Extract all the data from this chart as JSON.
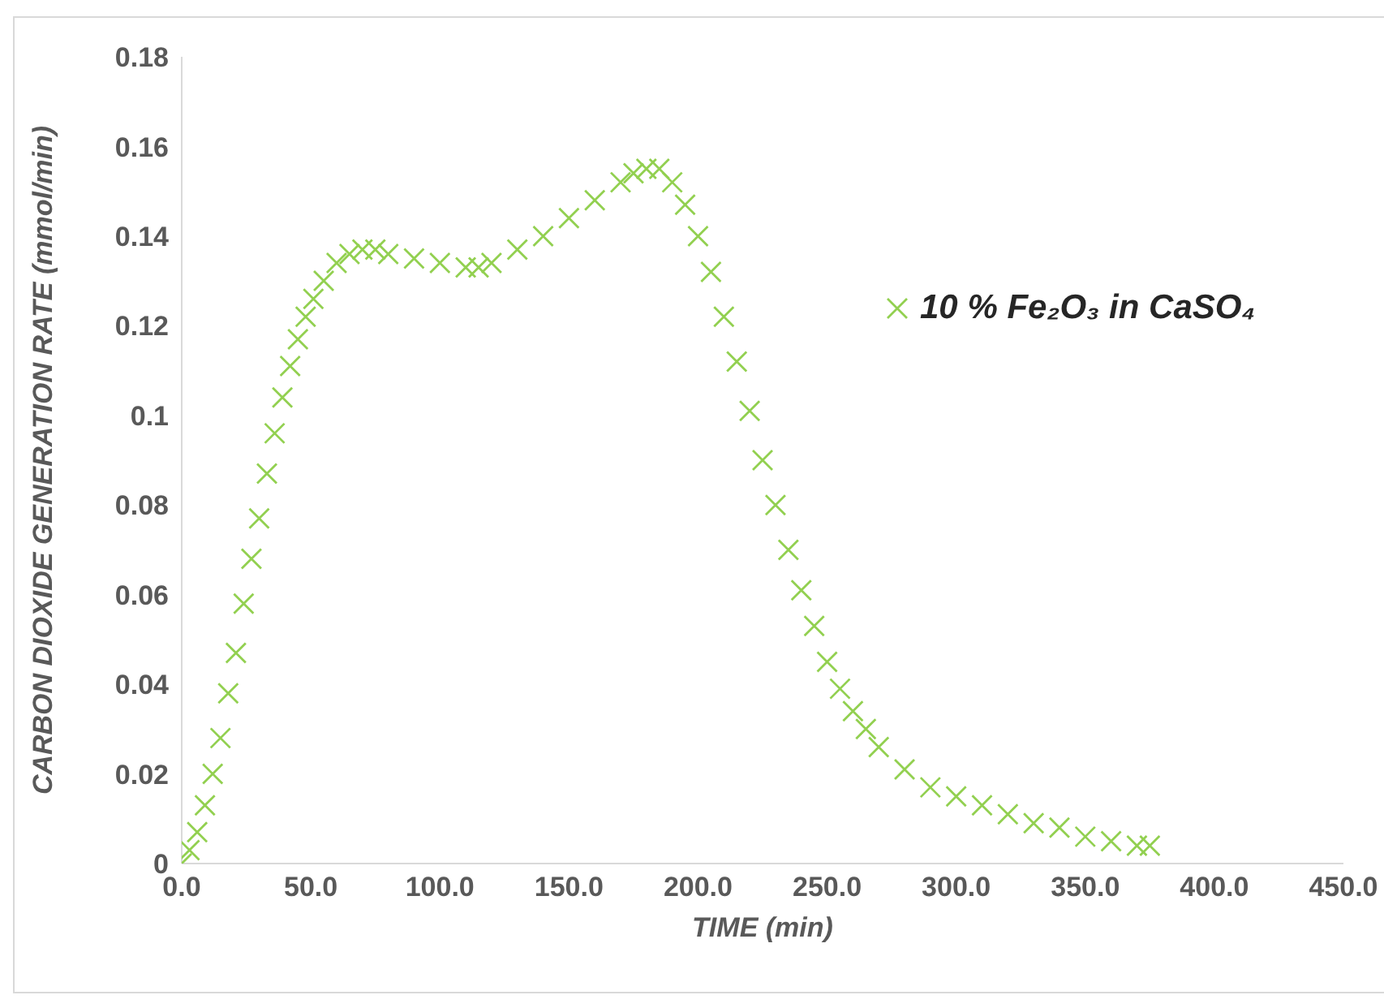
{
  "chart_data": {
    "type": "scatter",
    "xlabel": "TIME (min)",
    "ylabel": "CARBON DIOXIDE GENERATION RATE (mmol/min)",
    "xlim": [
      0,
      450
    ],
    "xticks": [
      {
        "value": 0,
        "label": "0.0"
      },
      {
        "value": 50,
        "label": "50.0"
      },
      {
        "value": 100,
        "label": "100.0"
      },
      {
        "value": 150,
        "label": "150.0"
      },
      {
        "value": 200,
        "label": "200.0"
      },
      {
        "value": 250,
        "label": "250.0"
      },
      {
        "value": 300,
        "label": "300.0"
      },
      {
        "value": 350,
        "label": "350.0"
      },
      {
        "value": 400,
        "label": "400.0"
      },
      {
        "value": 450,
        "label": "450.0"
      }
    ],
    "ylim": [
      0,
      0.18
    ],
    "yticks": [
      0,
      0.02,
      0.04,
      0.06,
      0.08,
      0.1,
      0.12,
      0.14,
      0.16,
      0.18
    ],
    "grid": false,
    "legend": "right",
    "marker": "cross",
    "series": [
      {
        "name": "10 % Fe₂O₃ in CaSO₄",
        "color": "#92d050",
        "x": [
          0,
          3,
          6,
          9,
          12,
          15,
          18,
          21,
          24,
          27,
          30,
          33,
          36,
          39,
          42,
          45,
          48,
          51,
          55,
          60,
          65,
          70,
          75,
          80,
          90,
          100,
          110,
          115,
          120,
          130,
          140,
          150,
          160,
          170,
          175,
          180,
          185,
          190,
          195,
          200,
          205,
          210,
          215,
          220,
          225,
          230,
          235,
          240,
          245,
          250,
          255,
          260,
          265,
          270,
          280,
          290,
          300,
          310,
          320,
          330,
          340,
          350,
          360,
          370,
          375
        ],
        "values": [
          0,
          0.003,
          0.007,
          0.013,
          0.02,
          0.028,
          0.038,
          0.047,
          0.058,
          0.068,
          0.077,
          0.087,
          0.096,
          0.104,
          0.111,
          0.117,
          0.122,
          0.126,
          0.13,
          0.134,
          0.136,
          0.137,
          0.137,
          0.136,
          0.135,
          0.134,
          0.133,
          0.133,
          0.134,
          0.137,
          0.14,
          0.144,
          0.148,
          0.152,
          0.154,
          0.155,
          0.155,
          0.152,
          0.147,
          0.14,
          0.132,
          0.122,
          0.112,
          0.101,
          0.09,
          0.08,
          0.07,
          0.061,
          0.053,
          0.045,
          0.039,
          0.034,
          0.03,
          0.026,
          0.021,
          0.017,
          0.015,
          0.013,
          0.011,
          0.009,
          0.008,
          0.006,
          0.005,
          0.004,
          0.004
        ]
      }
    ]
  }
}
